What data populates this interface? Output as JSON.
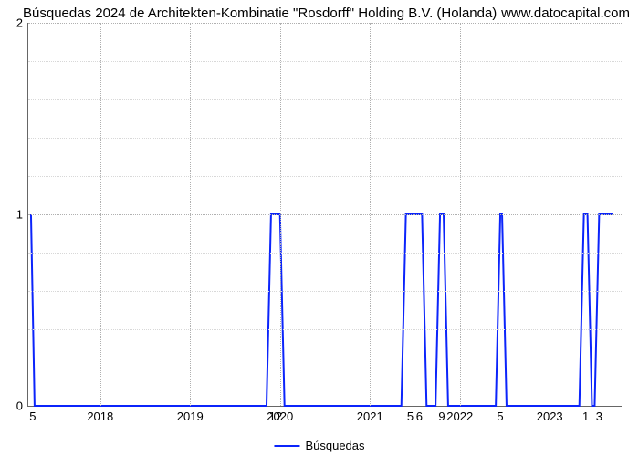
{
  "title": "Búsquedas 2024 de Architekten-Kombinatie \"Rosdorff\" Holding B.V. (Holanda)",
  "watermark": "www.datocapital.com",
  "legend_label": "Búsquedas",
  "chart": {
    "type": "line",
    "line_color": "#0b24fb",
    "line_width": 2,
    "background_color": "#ffffff",
    "grid_major_color": "#b0b0b0",
    "grid_minor_color": "#d8d8d8",
    "axis_color": "#666666",
    "text_color": "#000000",
    "label_fontsize": 13,
    "title_fontsize": 15,
    "x_domain": [
      2017.2,
      2023.8
    ],
    "ylim": [
      0,
      2
    ],
    "yticks": [
      0,
      1,
      2
    ],
    "y_minor_ticks_per_interval": 4,
    "x_year_ticks": [
      2018,
      2019,
      2020,
      2021,
      2022,
      2023
    ],
    "peaks": [
      {
        "x": 2017.25,
        "label": "5"
      },
      {
        "x": 2019.95,
        "label": "12"
      },
      {
        "x": 2021.45,
        "label": "5"
      },
      {
        "x": 2021.55,
        "label": "6"
      },
      {
        "x": 2021.8,
        "label": "9"
      },
      {
        "x": 2022.45,
        "label": "5"
      },
      {
        "x": 2023.4,
        "label": "1"
      },
      {
        "x": 2023.55,
        "label": "3"
      }
    ],
    "series": [
      {
        "x": 2017.23,
        "y": 1
      },
      {
        "x": 2017.27,
        "y": 0
      },
      {
        "x": 2019.85,
        "y": 0
      },
      {
        "x": 2019.9,
        "y": 1
      },
      {
        "x": 2020.0,
        "y": 1
      },
      {
        "x": 2020.05,
        "y": 0
      },
      {
        "x": 2021.35,
        "y": 0
      },
      {
        "x": 2021.4,
        "y": 1
      },
      {
        "x": 2021.58,
        "y": 1
      },
      {
        "x": 2021.63,
        "y": 0
      },
      {
        "x": 2021.73,
        "y": 0
      },
      {
        "x": 2021.78,
        "y": 1
      },
      {
        "x": 2021.82,
        "y": 1
      },
      {
        "x": 2021.87,
        "y": 0
      },
      {
        "x": 2022.4,
        "y": 0
      },
      {
        "x": 2022.45,
        "y": 1
      },
      {
        "x": 2022.47,
        "y": 1
      },
      {
        "x": 2022.52,
        "y": 0
      },
      {
        "x": 2023.33,
        "y": 0
      },
      {
        "x": 2023.38,
        "y": 1
      },
      {
        "x": 2023.42,
        "y": 1
      },
      {
        "x": 2023.47,
        "y": 0
      },
      {
        "x": 2023.5,
        "y": 0
      },
      {
        "x": 2023.55,
        "y": 1
      },
      {
        "x": 2023.7,
        "y": 1
      }
    ]
  }
}
